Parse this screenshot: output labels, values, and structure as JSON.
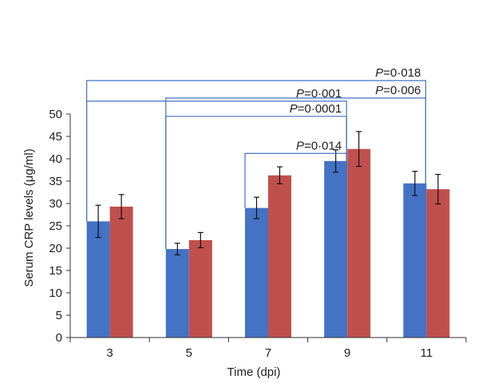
{
  "chart_data": {
    "type": "bar",
    "title": "",
    "xlabel": "Time (dpi)",
    "ylabel": "Serum CRP levels (μg/ml)",
    "ylim": [
      0,
      50
    ],
    "yticks": [
      "0",
      "5",
      "10",
      "15",
      "20",
      "25",
      "30",
      "35",
      "40",
      "45",
      "50"
    ],
    "categories": [
      "3",
      "5",
      "7",
      "9",
      "11"
    ],
    "grid": false,
    "legend": "none",
    "series": [
      {
        "color": "#4472c4",
        "values": [
          26.0,
          19.8,
          29.0,
          39.5,
          34.5
        ],
        "errors": [
          3.6,
          1.3,
          2.4,
          2.5,
          2.7
        ]
      },
      {
        "color": "#c0504d",
        "values": [
          29.3,
          21.8,
          36.3,
          42.2,
          33.2
        ],
        "errors": [
          2.7,
          1.7,
          1.9,
          3.9,
          3.3
        ]
      }
    ],
    "comparisons": [
      {
        "from": "3",
        "to": "11",
        "level": 57.5,
        "p_prefix": "P",
        "p_value": "=0·018"
      },
      {
        "from": "3",
        "to": "9",
        "level": 52.9,
        "p_prefix": "P",
        "p_value": "=0·001"
      },
      {
        "from": "5",
        "to": "11",
        "level": 53.6,
        "p_prefix": "P",
        "p_value": "=0·006"
      },
      {
        "from": "5",
        "to": "9",
        "level": 49.5,
        "p_prefix": "P",
        "p_value": "=0·0001"
      },
      {
        "from": "7",
        "to": "9",
        "level": 41.2,
        "p_prefix": "P",
        "p_value": "=0·014"
      }
    ],
    "comparison_color": "#4472c4"
  }
}
